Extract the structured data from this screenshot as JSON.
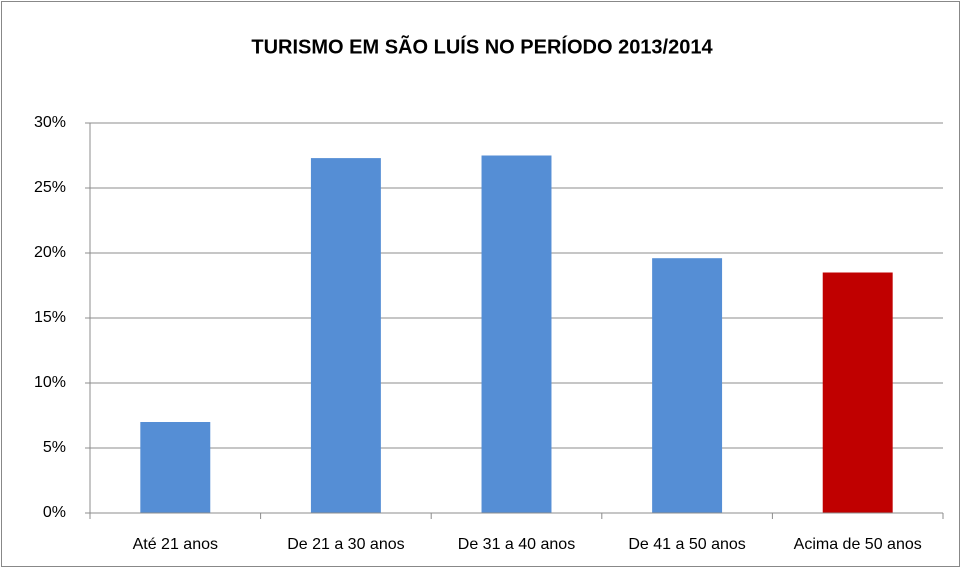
{
  "chart_data": {
    "type": "bar",
    "title": "TURISMO EM SÃO LUÍS NO PERÍODO 2013/2014",
    "categories": [
      "Até 21 anos",
      "De 21 a 30 anos",
      "De 31 a 40 anos",
      "De 41 a 50 anos",
      "Acima de 50 anos"
    ],
    "values": [
      7.0,
      27.3,
      27.5,
      19.6,
      18.5
    ],
    "colors": [
      "#558ed5",
      "#558ed5",
      "#558ed5",
      "#558ed5",
      "#c00000"
    ],
    "ylim": [
      0,
      30
    ],
    "yticks": [
      {
        "value": 0,
        "label": "0%"
      },
      {
        "value": 5,
        "label": "5%"
      },
      {
        "value": 10,
        "label": "10%"
      },
      {
        "value": 15,
        "label": "15%"
      },
      {
        "value": 20,
        "label": "20%"
      },
      {
        "value": 25,
        "label": "25%"
      },
      {
        "value": 30,
        "label": "30%"
      }
    ],
    "grid": true
  }
}
